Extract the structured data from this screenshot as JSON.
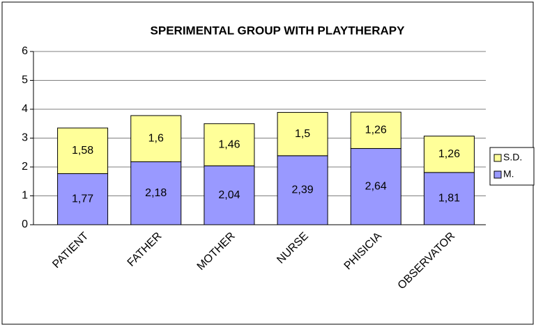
{
  "chart_data": {
    "type": "stacked_bar",
    "title": "SPERIMENTAL GROUP WITH PLAYTHERAPY",
    "categories": [
      "PATIENT",
      "FATHER",
      "MOTHER",
      "NURSE",
      "PHISICIA",
      "OBSERVATOR"
    ],
    "series": [
      {
        "name": "M.",
        "color": "#9999ff",
        "values": [
          1.77,
          2.18,
          2.04,
          2.39,
          2.64,
          1.81
        ],
        "value_labels": [
          "1,77",
          "2,18",
          "2,04",
          "2,39",
          "2,64",
          "1,81"
        ]
      },
      {
        "name": "S.D.",
        "color": "#ffff99",
        "values": [
          1.58,
          1.6,
          1.46,
          1.5,
          1.26,
          1.26
        ],
        "value_labels": [
          "1,58",
          "1,6",
          "1,46",
          "1,5",
          "1,26",
          "1,26"
        ]
      }
    ],
    "ylim": [
      0,
      6
    ],
    "yticks": [
      0,
      1,
      2,
      3,
      4,
      5,
      6
    ],
    "grid": true,
    "legend": "right"
  }
}
